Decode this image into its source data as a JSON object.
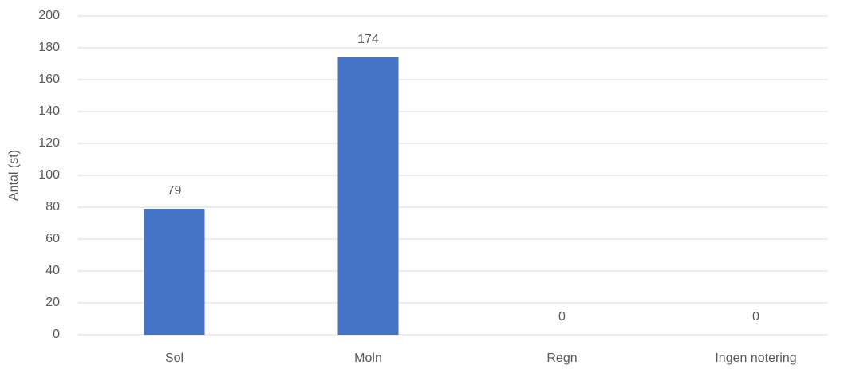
{
  "chart_data": {
    "type": "bar",
    "y_label": "Antal (st)",
    "categories": [
      "Sol",
      "Moln",
      "Regn",
      "Ingen notering"
    ],
    "values": [
      79,
      174,
      0,
      0
    ],
    "color": "#4472c4",
    "ylim": [
      0,
      200
    ],
    "yticks": [
      0,
      20,
      40,
      60,
      80,
      100,
      120,
      140,
      160,
      180,
      200
    ],
    "grid": true,
    "data_labels": true
  }
}
